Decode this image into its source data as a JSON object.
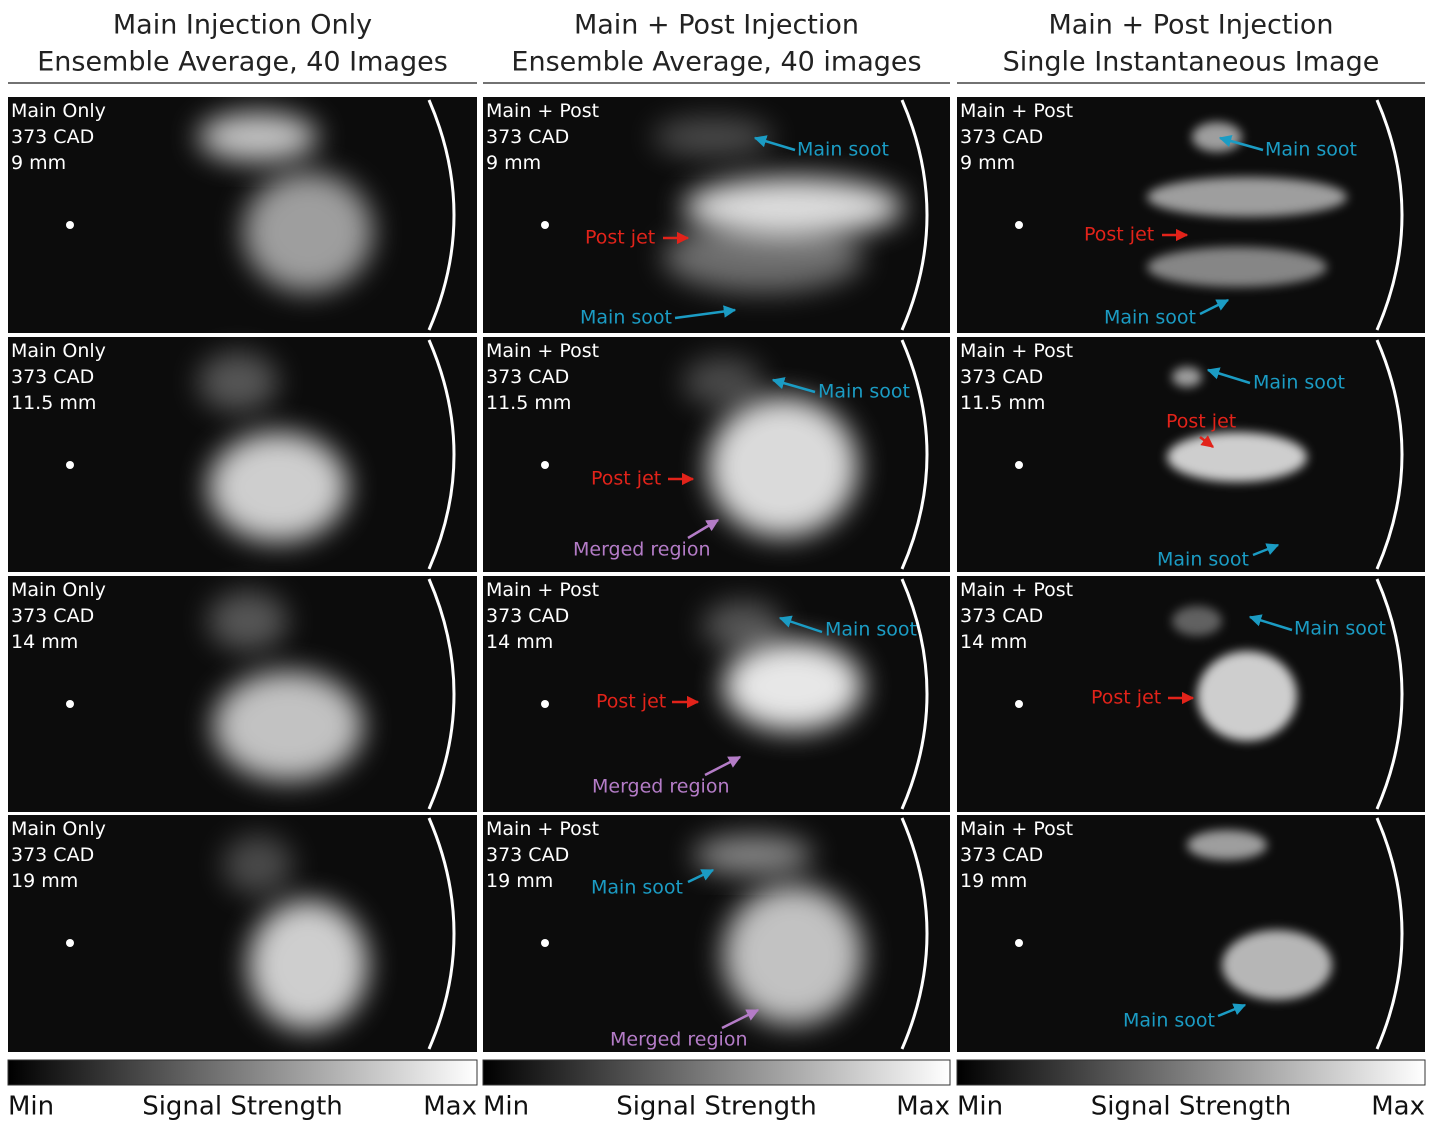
{
  "columns": [
    {
      "title": [
        "Main Injection Only",
        "Ensemble Average, 40 Images"
      ],
      "panels": [
        {
          "label": [
            "Main Only",
            "373 CAD",
            "9 mm"
          ],
          "annotations": []
        },
        {
          "label": [
            "Main Only",
            "373 CAD",
            "11.5 mm"
          ],
          "annotations": []
        },
        {
          "label": [
            "Main Only",
            "373 CAD",
            "14 mm"
          ],
          "annotations": []
        },
        {
          "label": [
            "Main Only",
            "373 CAD",
            "19 mm"
          ],
          "annotations": []
        }
      ],
      "colorbar": {
        "min": "Min",
        "label": "Signal Strength",
        "max": "Max"
      }
    },
    {
      "title": [
        "Main + Post Injection",
        "Ensemble Average, 40 images"
      ],
      "panels": [
        {
          "label": [
            "Main + Post",
            "373 CAD",
            "9 mm"
          ],
          "annotations": [
            {
              "text": "Main soot",
              "color": "#1b9cc4"
            },
            {
              "text": "Post jet",
              "color": "#e2231a"
            },
            {
              "text": "Main soot",
              "color": "#1b9cc4"
            }
          ]
        },
        {
          "label": [
            "Main + Post",
            "373 CAD",
            "11.5 mm"
          ],
          "annotations": [
            {
              "text": "Main soot",
              "color": "#1b9cc4"
            },
            {
              "text": "Post jet",
              "color": "#e2231a"
            },
            {
              "text": "Merged region",
              "color": "#b47cc7"
            }
          ]
        },
        {
          "label": [
            "Main + Post",
            "373 CAD",
            "14 mm"
          ],
          "annotations": [
            {
              "text": "Main soot",
              "color": "#1b9cc4"
            },
            {
              "text": "Post jet",
              "color": "#e2231a"
            },
            {
              "text": "Merged region",
              "color": "#b47cc7"
            }
          ]
        },
        {
          "label": [
            "Main + Post",
            "373 CAD",
            "19 mm"
          ],
          "annotations": [
            {
              "text": "Main soot",
              "color": "#1b9cc4"
            },
            {
              "text": "Merged region",
              "color": "#b47cc7"
            }
          ]
        }
      ],
      "colorbar": {
        "min": "Min",
        "label": "Signal Strength",
        "max": "Max"
      }
    },
    {
      "title": [
        "Main + Post Injection",
        "Single Instantaneous Image"
      ],
      "panels": [
        {
          "label": [
            "Main + Post",
            "373 CAD",
            "9 mm"
          ],
          "annotations": [
            {
              "text": "Main soot",
              "color": "#1b9cc4"
            },
            {
              "text": "Post jet",
              "color": "#e2231a"
            },
            {
              "text": "Main soot",
              "color": "#1b9cc4"
            }
          ]
        },
        {
          "label": [
            "Main + Post",
            "373 CAD",
            "11.5 mm"
          ],
          "annotations": [
            {
              "text": "Main soot",
              "color": "#1b9cc4"
            },
            {
              "text": "Post jet",
              "color": "#e2231a"
            },
            {
              "text": "Main soot",
              "color": "#1b9cc4"
            }
          ]
        },
        {
          "label": [
            "Main + Post",
            "373 CAD",
            "14 mm"
          ],
          "annotations": [
            {
              "text": "Main soot",
              "color": "#1b9cc4"
            },
            {
              "text": "Post jet",
              "color": "#e2231a"
            }
          ]
        },
        {
          "label": [
            "Main + Post",
            "373 CAD",
            "19 mm"
          ],
          "annotations": [
            {
              "text": "Main soot",
              "color": "#1b9cc4"
            }
          ]
        }
      ],
      "colorbar": {
        "min": "Min",
        "label": "Signal Strength",
        "max": "Max"
      }
    }
  ]
}
